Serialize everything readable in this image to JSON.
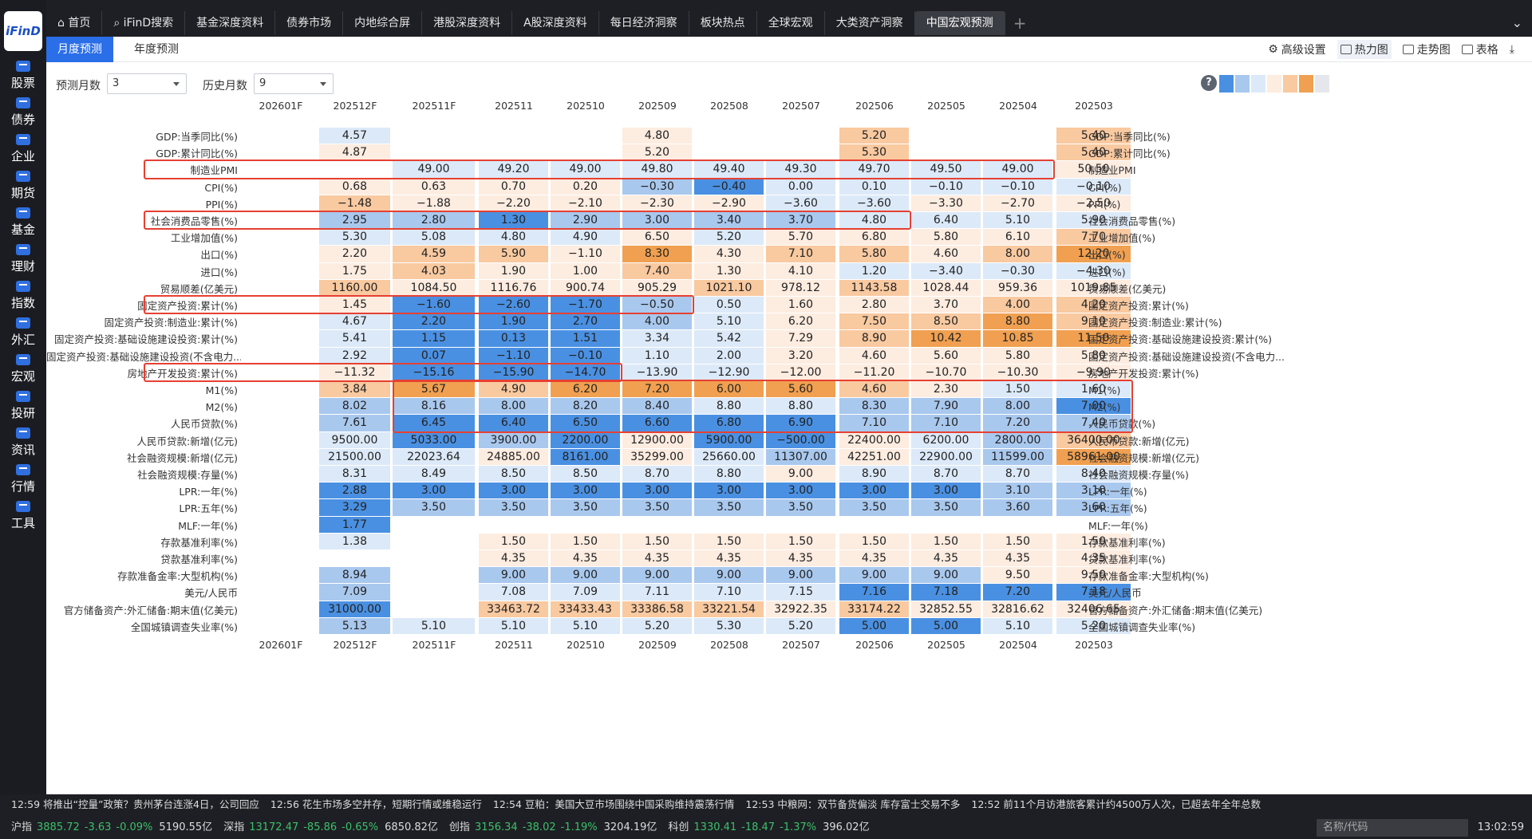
{
  "app": {
    "logo": "iFinD"
  },
  "sidebar": [
    "股票",
    "债券",
    "企业",
    "期货",
    "基金",
    "理财",
    "指数",
    "外汇",
    "宏观",
    "投研",
    "资讯",
    "行情",
    "工具"
  ],
  "top_tabs": [
    "首页",
    "iFinD搜索",
    "基金深度资料",
    "债券市场",
    "内地综合屏",
    "港股深度资料",
    "A股深度资料",
    "每日经济洞察",
    "板块热点",
    "全球宏观",
    "大类资产洞察",
    "中国宏观预测"
  ],
  "top_tab_icons": {
    "home": "home-icon",
    "search": "search-icon"
  },
  "sub_tabs": [
    "月度预测",
    "年度预测"
  ],
  "toolbar": [
    "高级设置",
    "热力图",
    "走势图",
    "表格"
  ],
  "filters": {
    "forecast_label": "预测月数",
    "forecast_value": "3",
    "history_label": "历史月数",
    "history_value": "9"
  },
  "help": "?",
  "legend_colors": [
    "#4a90e2",
    "#a9c8ee",
    "#dce9f8",
    "#fdece0",
    "#f9c9a0",
    "#f0a050",
    "#e5e7ec"
  ],
  "columns": [
    "202601F",
    "202512F",
    "202511F",
    "202511",
    "202510",
    "202509",
    "202508",
    "202507",
    "202506",
    "202505",
    "202504",
    "202503"
  ],
  "rows": [
    {
      "label": "GDP:当季同比(%)",
      "values": [
        "",
        "4.57",
        "",
        "",
        "",
        "4.80",
        "",
        "",
        "5.20",
        "",
        "",
        "5.40"
      ]
    },
    {
      "label": "GDP:累计同比(%)",
      "values": [
        "",
        "4.87",
        "",
        "",
        "",
        "5.20",
        "",
        "",
        "5.30",
        "",
        "",
        "5.40"
      ]
    },
    {
      "label": "制造业PMI",
      "values": [
        "",
        "",
        "49.00",
        "49.20",
        "49.00",
        "49.80",
        "49.40",
        "49.30",
        "49.70",
        "49.50",
        "49.00",
        "50.50"
      ]
    },
    {
      "label": "CPI(%)",
      "values": [
        "",
        "0.68",
        "0.63",
        "0.70",
        "0.20",
        "−0.30",
        "−0.40",
        "0.00",
        "0.10",
        "−0.10",
        "−0.10",
        "−0.10"
      ]
    },
    {
      "label": "PPI(%)",
      "values": [
        "",
        "−1.48",
        "−1.88",
        "−2.20",
        "−2.10",
        "−2.30",
        "−2.90",
        "−3.60",
        "−3.60",
        "−3.30",
        "−2.70",
        "−2.50"
      ]
    },
    {
      "label": "社会消费品零售(%)",
      "values": [
        "",
        "2.95",
        "2.80",
        "1.30",
        "2.90",
        "3.00",
        "3.40",
        "3.70",
        "4.80",
        "6.40",
        "5.10",
        "5.90"
      ]
    },
    {
      "label": "工业增加值(%)",
      "values": [
        "",
        "5.30",
        "5.08",
        "4.80",
        "4.90",
        "6.50",
        "5.20",
        "5.70",
        "6.80",
        "5.80",
        "6.10",
        "7.70"
      ]
    },
    {
      "label": "出口(%)",
      "values": [
        "",
        "2.20",
        "4.59",
        "5.90",
        "−1.10",
        "8.30",
        "4.30",
        "7.10",
        "5.80",
        "4.60",
        "8.00",
        "12.20"
      ]
    },
    {
      "label": "进口(%)",
      "values": [
        "",
        "1.75",
        "4.03",
        "1.90",
        "1.00",
        "7.40",
        "1.30",
        "4.10",
        "1.20",
        "−3.40",
        "−0.30",
        "−4.30"
      ]
    },
    {
      "label": "贸易顺差(亿美元)",
      "values": [
        "",
        "1160.00",
        "1084.50",
        "1116.76",
        "900.74",
        "905.29",
        "1021.10",
        "978.12",
        "1143.58",
        "1028.44",
        "959.36",
        "1019.85"
      ]
    },
    {
      "label": "固定资产投资:累计(%)",
      "values": [
        "",
        "1.45",
        "−1.60",
        "−2.60",
        "−1.70",
        "−0.50",
        "0.50",
        "1.60",
        "2.80",
        "3.70",
        "4.00",
        "4.20"
      ]
    },
    {
      "label": "固定资产投资:制造业:累计(%)",
      "values": [
        "",
        "4.67",
        "2.20",
        "1.90",
        "2.70",
        "4.00",
        "5.10",
        "6.20",
        "7.50",
        "8.50",
        "8.80",
        "9.10"
      ]
    },
    {
      "label": "固定资产投资:基础设施建设投资:累计(%)",
      "values": [
        "",
        "5.41",
        "1.15",
        "0.13",
        "1.51",
        "3.34",
        "5.42",
        "7.29",
        "8.90",
        "10.42",
        "10.85",
        "11.50"
      ]
    },
    {
      "label": "固定资产投资:基础设施建设投资(不含电力...",
      "values": [
        "",
        "2.92",
        "0.07",
        "−1.10",
        "−0.10",
        "1.10",
        "2.00",
        "3.20",
        "4.60",
        "5.60",
        "5.80",
        "5.80"
      ]
    },
    {
      "label": "房地产开发投资:累计(%)",
      "values": [
        "",
        "−11.32",
        "−15.16",
        "−15.90",
        "−14.70",
        "−13.90",
        "−12.90",
        "−12.00",
        "−11.20",
        "−10.70",
        "−10.30",
        "−9.90"
      ]
    },
    {
      "label": "M1(%)",
      "values": [
        "",
        "3.84",
        "5.67",
        "4.90",
        "6.20",
        "7.20",
        "6.00",
        "5.60",
        "4.60",
        "2.30",
        "1.50",
        "1.60"
      ]
    },
    {
      "label": "M2(%)",
      "values": [
        "",
        "8.02",
        "8.16",
        "8.00",
        "8.20",
        "8.40",
        "8.80",
        "8.80",
        "8.30",
        "7.90",
        "8.00",
        "7.00"
      ]
    },
    {
      "label": "人民币贷款(%)",
      "values": [
        "",
        "7.61",
        "6.45",
        "6.40",
        "6.50",
        "6.60",
        "6.80",
        "6.90",
        "7.10",
        "7.10",
        "7.20",
        "7.40"
      ]
    },
    {
      "label": "人民币贷款:新增(亿元)",
      "values": [
        "",
        "9500.00",
        "5033.00",
        "3900.00",
        "2200.00",
        "12900.00",
        "5900.00",
        "−500.00",
        "22400.00",
        "6200.00",
        "2800.00",
        "36400.00"
      ]
    },
    {
      "label": "社会融资规模:新增(亿元)",
      "values": [
        "",
        "21500.00",
        "22023.64",
        "24885.00",
        "8161.00",
        "35299.00",
        "25660.00",
        "11307.00",
        "42251.00",
        "22900.00",
        "11599.00",
        "58961.00"
      ]
    },
    {
      "label": "社会融资规模:存量(%)",
      "values": [
        "",
        "8.31",
        "8.49",
        "8.50",
        "8.50",
        "8.70",
        "8.80",
        "9.00",
        "8.90",
        "8.70",
        "8.70",
        "8.40"
      ]
    },
    {
      "label": "LPR:一年(%)",
      "values": [
        "",
        "2.88",
        "3.00",
        "3.00",
        "3.00",
        "3.00",
        "3.00",
        "3.00",
        "3.00",
        "3.00",
        "3.10",
        "3.10"
      ]
    },
    {
      "label": "LPR:五年(%)",
      "values": [
        "",
        "3.29",
        "3.50",
        "3.50",
        "3.50",
        "3.50",
        "3.50",
        "3.50",
        "3.50",
        "3.50",
        "3.60",
        "3.60"
      ]
    },
    {
      "label": "MLF:一年(%)",
      "values": [
        "",
        "1.77",
        "",
        "",
        "",
        "",
        "",
        "",
        "",
        "",
        "",
        ""
      ]
    },
    {
      "label": "存款基准利率(%)",
      "values": [
        "",
        "1.38",
        "",
        "1.50",
        "1.50",
        "1.50",
        "1.50",
        "1.50",
        "1.50",
        "1.50",
        "1.50",
        "1.50"
      ]
    },
    {
      "label": "贷款基准利率(%)",
      "values": [
        "",
        "",
        "",
        "4.35",
        "4.35",
        "4.35",
        "4.35",
        "4.35",
        "4.35",
        "4.35",
        "4.35",
        "4.35"
      ]
    },
    {
      "label": "存款准备金率:大型机构(%)",
      "values": [
        "",
        "8.94",
        "",
        "9.00",
        "9.00",
        "9.00",
        "9.00",
        "9.00",
        "9.00",
        "9.00",
        "9.50",
        "9.50"
      ]
    },
    {
      "label": "美元/人民币",
      "values": [
        "",
        "7.09",
        "",
        "7.08",
        "7.09",
        "7.11",
        "7.10",
        "7.15",
        "7.16",
        "7.18",
        "7.20",
        "7.18"
      ]
    },
    {
      "label": "官方储备资产:外汇储备:期末值(亿美元)",
      "values": [
        "",
        "31000.00",
        "",
        "33463.72",
        "33433.43",
        "33386.58",
        "33221.54",
        "32922.35",
        "33174.22",
        "32852.55",
        "32816.62",
        "32406.65"
      ]
    },
    {
      "label": "全国城镇调查失业率(%)",
      "values": [
        "",
        "5.13",
        "5.10",
        "5.10",
        "5.10",
        "5.20",
        "5.30",
        "5.20",
        "5.00",
        "5.00",
        "5.10",
        "5.20"
      ]
    }
  ],
  "colors": [
    [
      "",
      "#dce9f8",
      "",
      "",
      "",
      "#fdece0",
      "",
      "",
      "#f9c9a0",
      "",
      "",
      "#f9c9a0"
    ],
    [
      "",
      "#fdece0",
      "",
      "",
      "",
      "#fdece0",
      "",
      "",
      "#f9c9a0",
      "",
      "",
      "#f9c9a0"
    ],
    [
      "",
      "",
      "#dce9f8",
      "#dce9f8",
      "#dce9f8",
      "#dce9f8",
      "#dce9f8",
      "#dce9f8",
      "#dce9f8",
      "#dce9f8",
      "#dce9f8",
      "#fdece0"
    ],
    [
      "",
      "#fdece0",
      "#fdece0",
      "#fdece0",
      "#fdece0",
      "#a9c8ee",
      "#4a90e2",
      "#dce9f8",
      "#dce9f8",
      "#dce9f8",
      "#dce9f8",
      "#dce9f8"
    ],
    [
      "",
      "#f9c9a0",
      "#fdece0",
      "#fdece0",
      "#fdece0",
      "#fdece0",
      "#fdece0",
      "#dce9f8",
      "#dce9f8",
      "#fdece0",
      "#fdece0",
      "#fdece0"
    ],
    [
      "",
      "#a9c8ee",
      "#a9c8ee",
      "#4a90e2",
      "#a9c8ee",
      "#a9c8ee",
      "#a9c8ee",
      "#a9c8ee",
      "#dce9f8",
      "#dce9f8",
      "#dce9f8",
      "#dce9f8"
    ],
    [
      "",
      "#dce9f8",
      "#dce9f8",
      "#dce9f8",
      "#dce9f8",
      "#fdece0",
      "#dce9f8",
      "#fdece0",
      "#fdece0",
      "#fdece0",
      "#fdece0",
      "#f9c9a0"
    ],
    [
      "",
      "#fdece0",
      "#f9c9a0",
      "#f9c9a0",
      "#fdece0",
      "#f0a050",
      "#fdece0",
      "#f9c9a0",
      "#f9c9a0",
      "#fdece0",
      "#f9c9a0",
      "#f0a050"
    ],
    [
      "",
      "#fdece0",
      "#f9c9a0",
      "#fdece0",
      "#fdece0",
      "#f9c9a0",
      "#fdece0",
      "#fdece0",
      "#dce9f8",
      "#dce9f8",
      "#dce9f8",
      "#dce9f8"
    ],
    [
      "",
      "#f9c9a0",
      "#fdece0",
      "#fdece0",
      "#fdece0",
      "#fdece0",
      "#f9c9a0",
      "#fdece0",
      "#f9c9a0",
      "#fdece0",
      "#fdece0",
      "#fdece0"
    ],
    [
      "",
      "#fdece0",
      "#4a90e2",
      "#4a90e2",
      "#4a90e2",
      "#a9c8ee",
      "#dce9f8",
      "#fdece0",
      "#fdece0",
      "#fdece0",
      "#f9c9a0",
      "#f9c9a0"
    ],
    [
      "",
      "#dce9f8",
      "#4a90e2",
      "#4a90e2",
      "#4a90e2",
      "#a9c8ee",
      "#dce9f8",
      "#fdece0",
      "#f9c9a0",
      "#f9c9a0",
      "#f0a050",
      "#f9c9a0"
    ],
    [
      "",
      "#dce9f8",
      "#4a90e2",
      "#4a90e2",
      "#4a90e2",
      "#dce9f8",
      "#dce9f8",
      "#fdece0",
      "#f9c9a0",
      "#f0a050",
      "#f0a050",
      "#f0a050"
    ],
    [
      "",
      "#dce9f8",
      "#4a90e2",
      "#4a90e2",
      "#4a90e2",
      "#dce9f8",
      "#dce9f8",
      "#fdece0",
      "#fdece0",
      "#fdece0",
      "#fdece0",
      "#fdece0"
    ],
    [
      "",
      "#fdece0",
      "#4a90e2",
      "#4a90e2",
      "#4a90e2",
      "#dce9f8",
      "#dce9f8",
      "#fdece0",
      "#fdece0",
      "#fdece0",
      "#fdece0",
      "#fdece0"
    ],
    [
      "",
      "#f9c9a0",
      "#f0a050",
      "#f9c9a0",
      "#f0a050",
      "#f0a050",
      "#f0a050",
      "#f0a050",
      "#f9c9a0",
      "#fdece0",
      "#dce9f8",
      "#dce9f8"
    ],
    [
      "",
      "#a9c8ee",
      "#a9c8ee",
      "#a9c8ee",
      "#a9c8ee",
      "#a9c8ee",
      "#dce9f8",
      "#dce9f8",
      "#a9c8ee",
      "#a9c8ee",
      "#a9c8ee",
      "#4a90e2"
    ],
    [
      "",
      "#a9c8ee",
      "#4a90e2",
      "#4a90e2",
      "#4a90e2",
      "#4a90e2",
      "#4a90e2",
      "#4a90e2",
      "#a9c8ee",
      "#a9c8ee",
      "#a9c8ee",
      "#a9c8ee"
    ],
    [
      "",
      "#dce9f8",
      "#4a90e2",
      "#a9c8ee",
      "#4a90e2",
      "#fdece0",
      "#4a90e2",
      "#4a90e2",
      "#fdece0",
      "#dce9f8",
      "#a9c8ee",
      "#f9c9a0"
    ],
    [
      "",
      "#dce9f8",
      "#dce9f8",
      "#fdece0",
      "#4a90e2",
      "#fdece0",
      "#dce9f8",
      "#a9c8ee",
      "#fdece0",
      "#dce9f8",
      "#a9c8ee",
      "#f0a050"
    ],
    [
      "",
      "#dce9f8",
      "#dce9f8",
      "#dce9f8",
      "#dce9f8",
      "#dce9f8",
      "#dce9f8",
      "#fdece0",
      "#dce9f8",
      "#dce9f8",
      "#dce9f8",
      "#dce9f8"
    ],
    [
      "",
      "#4a90e2",
      "#4a90e2",
      "#4a90e2",
      "#4a90e2",
      "#4a90e2",
      "#4a90e2",
      "#4a90e2",
      "#4a90e2",
      "#4a90e2",
      "#a9c8ee",
      "#a9c8ee"
    ],
    [
      "",
      "#4a90e2",
      "#a9c8ee",
      "#a9c8ee",
      "#a9c8ee",
      "#a9c8ee",
      "#a9c8ee",
      "#a9c8ee",
      "#a9c8ee",
      "#a9c8ee",
      "#a9c8ee",
      "#a9c8ee"
    ],
    [
      "",
      "#4a90e2",
      "",
      "",
      "",
      "",
      "",
      "",
      "",
      "",
      "",
      ""
    ],
    [
      "",
      "#dce9f8",
      "",
      "#fdece0",
      "#fdece0",
      "#fdece0",
      "#fdece0",
      "#fdece0",
      "#fdece0",
      "#fdece0",
      "#fdece0",
      "#fdece0"
    ],
    [
      "",
      "",
      "",
      "#fdece0",
      "#fdece0",
      "#fdece0",
      "#fdece0",
      "#fdece0",
      "#fdece0",
      "#fdece0",
      "#fdece0",
      "#fdece0"
    ],
    [
      "",
      "#a9c8ee",
      "",
      "#a9c8ee",
      "#a9c8ee",
      "#a9c8ee",
      "#a9c8ee",
      "#a9c8ee",
      "#a9c8ee",
      "#a9c8ee",
      "#fdece0",
      "#fdece0"
    ],
    [
      "",
      "#a9c8ee",
      "",
      "#dce9f8",
      "#dce9f8",
      "#dce9f8",
      "#dce9f8",
      "#dce9f8",
      "#4a90e2",
      "#4a90e2",
      "#4a90e2",
      "#4a90e2"
    ],
    [
      "",
      "#4a90e2",
      "",
      "#f9c9a0",
      "#f9c9a0",
      "#f9c9a0",
      "#f9c9a0",
      "#fdece0",
      "#f9c9a0",
      "#fdece0",
      "#fdece0",
      "#fdece0"
    ],
    [
      "",
      "#a9c8ee",
      "#dce9f8",
      "#dce9f8",
      "#dce9f8",
      "#dce9f8",
      "#dce9f8",
      "#dce9f8",
      "#4a90e2",
      "#4a90e2",
      "#dce9f8",
      "#dce9f8"
    ]
  ],
  "highlights": [
    {
      "row": 2,
      "col_start": -1,
      "col_end": 10
    },
    {
      "row": 5,
      "col_start": -1,
      "col_end": 8
    },
    {
      "row": 10,
      "col_start": -1,
      "col_end": 5
    },
    {
      "row": 14,
      "col_start": -1,
      "col_end": 4
    },
    {
      "row_start": 15,
      "row_end": 17,
      "col_start": 2,
      "col_end": 11
    }
  ],
  "ticker": [
    "12:59 将推出“控量”政策？贵州茅台连涨4日，公司回应",
    "12:56 花生市场多空并存，短期行情或维稳运行",
    "12:54 豆粕：美国大豆市场围绕中国采购维持震荡行情",
    "12:53 中粮网：双节备货偏淡 库存富士交易不多",
    "12:52 前11个月访港旅客累计约4500万人次，已超去年全年总数"
  ],
  "market": [
    {
      "name": "沪指",
      "value": "3885.72",
      "change": "-3.63",
      "pct": "-0.09%",
      "turnover": "5190.55亿"
    },
    {
      "name": "深指",
      "value": "13172.47",
      "change": "-85.86",
      "pct": "-0.65%",
      "turnover": "6850.82亿"
    },
    {
      "name": "创指",
      "value": "3156.34",
      "change": "-38.02",
      "pct": "-1.19%",
      "turnover": "3204.19亿"
    },
    {
      "name": "科创",
      "value": "1330.41",
      "change": "-18.47",
      "pct": "-1.37%",
      "turnover": "396.02亿"
    }
  ],
  "code_placeholder": "名称/代码",
  "clock": "13:02:59"
}
